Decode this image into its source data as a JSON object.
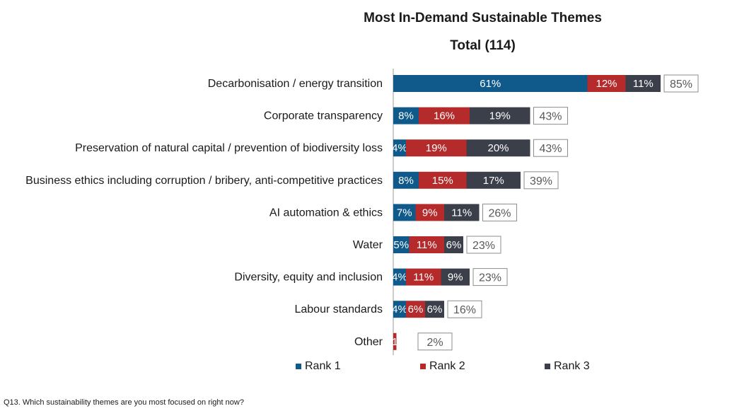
{
  "titles": {
    "title": "Most In-Demand Sustainable Themes",
    "subtitle": "Total (114)"
  },
  "chart_data": {
    "type": "bar",
    "orientation": "horizontal",
    "stacked": true,
    "categories": [
      "Decarbonisation / energy transition",
      "Corporate transparency",
      "Preservation of natural capital / prevention of biodiversity loss",
      "Business ethics including corruption / bribery, anti-competitive practices",
      "AI automation & ethics",
      "Water",
      "Diversity, equity and inclusion",
      "Labour standards",
      "Other"
    ],
    "series": [
      {
        "name": "Rank 1",
        "color": "#0f5a8a",
        "values": [
          61,
          8,
          4,
          8,
          7,
          5,
          4,
          4,
          0
        ],
        "labels": [
          "61%",
          "8%",
          "4%",
          "8%",
          "7%",
          "5%",
          "4%",
          "4%",
          ""
        ]
      },
      {
        "name": "Rank 2",
        "color": "#b52b2b",
        "values": [
          12,
          16,
          19,
          15,
          9,
          11,
          11,
          6,
          1
        ],
        "labels": [
          "12%",
          "16%",
          "19%",
          "15%",
          "9%",
          "11%",
          "11%",
          "6%",
          "1"
        ]
      },
      {
        "name": "Rank 3",
        "color": "#3b3f4a",
        "values": [
          11,
          19,
          20,
          17,
          11,
          6,
          9,
          6,
          0
        ],
        "labels": [
          "11%",
          "19%",
          "20%",
          "17%",
          "11%",
          "6%",
          "9%",
          "6%",
          ""
        ]
      }
    ],
    "totals": [
      "85%",
      "43%",
      "43%",
      "39%",
      "26%",
      "23%",
      "23%",
      "16%",
      "2%"
    ],
    "legend_position": "bottom",
    "grid": false
  },
  "legend": [
    {
      "label": "Rank 1",
      "color": "#0f5a8a"
    },
    {
      "label": "Rank 2",
      "color": "#b52b2b"
    },
    {
      "label": "Rank 3",
      "color": "#3b3f4a"
    }
  ],
  "footnote": "Q13. Which sustainability themes are you most focused on right now?"
}
